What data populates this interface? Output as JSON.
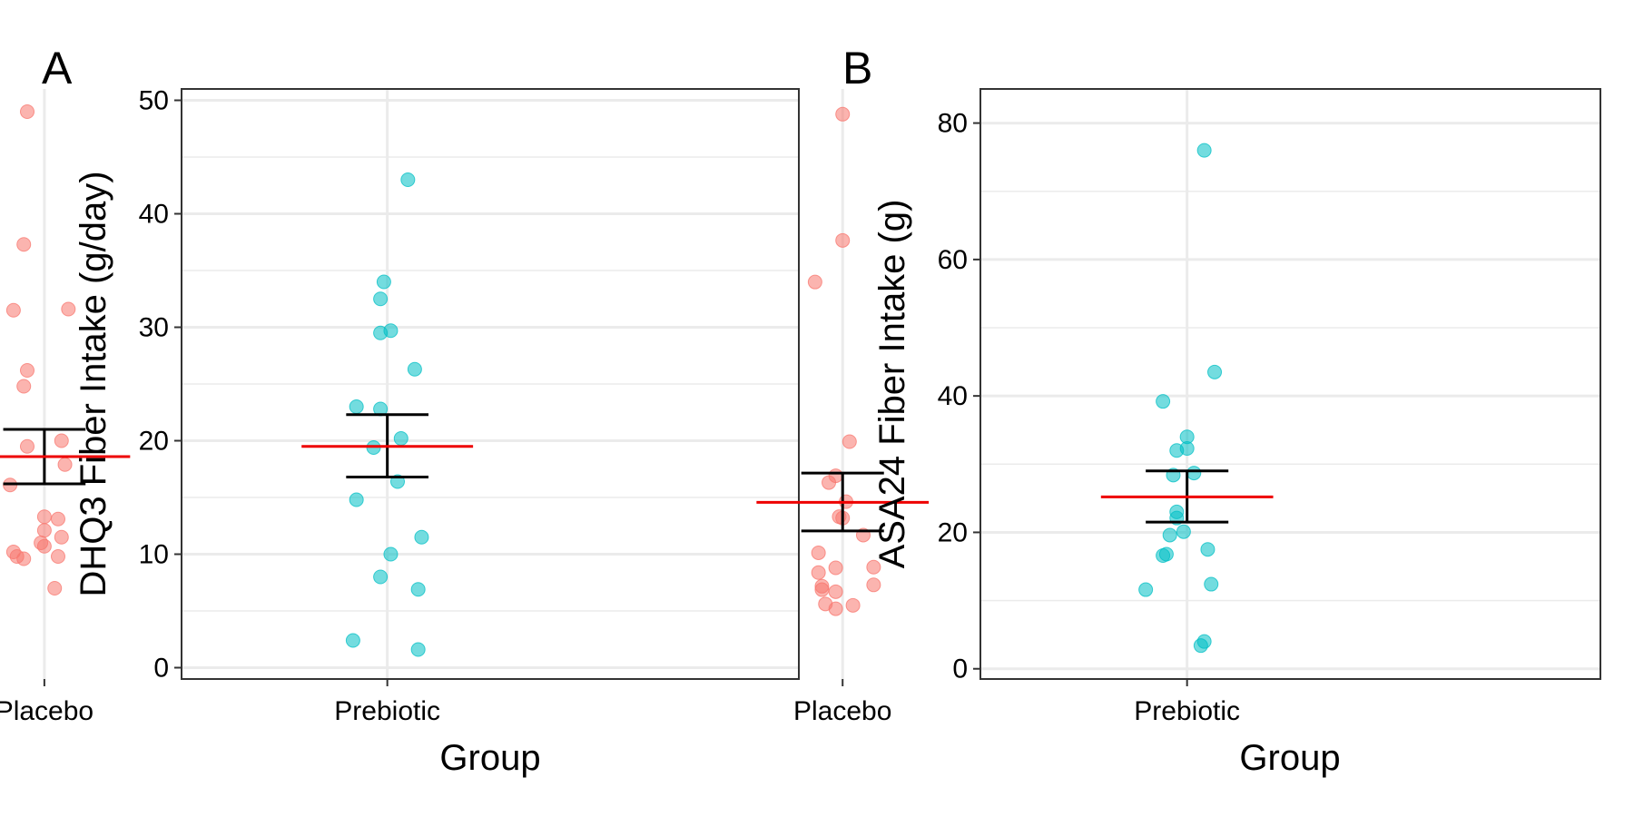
{
  "figure": {
    "panels": [
      "A",
      "B"
    ]
  },
  "colors": {
    "placebo": "#F8766D",
    "prebiotic": "#00BFC4",
    "mean_line": "#EE0000",
    "error_bar": "#000000",
    "panel_border": "#333333",
    "grid": "#EBEBEB"
  },
  "chart_data": [
    {
      "type": "scatter",
      "panel_label": "A",
      "xlabel": "Group",
      "ylabel": "DHQ3 Fiber Intake (g/day)",
      "categories": [
        "Placebo",
        "Prebiotic"
      ],
      "ylim": [
        -1,
        51
      ],
      "yticks": [
        0,
        10,
        20,
        30,
        40,
        50
      ],
      "grid": true,
      "legend": "none",
      "series": [
        {
          "group": "Placebo",
          "color": "#F8766D",
          "points": [
            [
              -0.05,
              49
            ],
            [
              -0.06,
              37.3
            ],
            [
              -0.09,
              31.5
            ],
            [
              0.07,
              31.6
            ],
            [
              -0.05,
              26.2
            ],
            [
              -0.06,
              24.8
            ],
            [
              -0.05,
              19.5
            ],
            [
              0.05,
              20
            ],
            [
              0.06,
              17.9
            ],
            [
              -0.1,
              16.1
            ],
            [
              0.0,
              13.3
            ],
            [
              0.04,
              13.1
            ],
            [
              0.0,
              12.1
            ],
            [
              0.05,
              11.5
            ],
            [
              -0.01,
              11
            ],
            [
              0.0,
              10.7
            ],
            [
              -0.09,
              10.2
            ],
            [
              -0.08,
              9.8
            ],
            [
              -0.06,
              9.6
            ],
            [
              0.04,
              9.8
            ],
            [
              0.03,
              7
            ]
          ],
          "mean": 18.6,
          "lower": 16.2,
          "upper": 21
        },
        {
          "group": "Prebiotic",
          "color": "#00BFC4",
          "points": [
            [
              0.06,
              43
            ],
            [
              -0.01,
              34
            ],
            [
              -0.02,
              32.5
            ],
            [
              -0.02,
              29.5
            ],
            [
              0.01,
              29.7
            ],
            [
              0.08,
              26.3
            ],
            [
              -0.09,
              23
            ],
            [
              -0.02,
              22.8
            ],
            [
              0.04,
              20.2
            ],
            [
              -0.04,
              19.4
            ],
            [
              0.03,
              16.4
            ],
            [
              -0.09,
              14.8
            ],
            [
              0.1,
              11.5
            ],
            [
              0.01,
              10
            ],
            [
              -0.02,
              8
            ],
            [
              0.09,
              6.9
            ],
            [
              -0.1,
              2.4
            ],
            [
              0.09,
              1.6
            ]
          ],
          "mean": 19.5,
          "lower": 16.8,
          "upper": 22.3
        }
      ]
    },
    {
      "type": "scatter",
      "panel_label": "B",
      "xlabel": "Group",
      "ylabel": "ASA24 Fiber Intake (g)",
      "categories": [
        "Placebo",
        "Prebiotic"
      ],
      "ylim": [
        -1.5,
        85
      ],
      "yticks": [
        0,
        20,
        40,
        60,
        80
      ],
      "grid": true,
      "legend": "none",
      "series": [
        {
          "group": "Placebo",
          "color": "#F8766D",
          "points": [
            [
              0.0,
              81.3
            ],
            [
              0.0,
              62.8
            ],
            [
              -0.08,
              56.7
            ],
            [
              0.02,
              33.3
            ],
            [
              -0.02,
              28.3
            ],
            [
              -0.04,
              27.3
            ],
            [
              0.01,
              24.5
            ],
            [
              -0.01,
              22.3
            ],
            [
              0.0,
              22.1
            ],
            [
              0.06,
              19.6
            ],
            [
              -0.07,
              17
            ],
            [
              -0.02,
              14.8
            ],
            [
              -0.07,
              14.1
            ],
            [
              0.09,
              14.9
            ],
            [
              -0.06,
              12.1
            ],
            [
              -0.06,
              11.6
            ],
            [
              0.09,
              12.3
            ],
            [
              -0.02,
              11.3
            ],
            [
              -0.05,
              9.5
            ],
            [
              0.03,
              9.3
            ],
            [
              -0.02,
              8.8
            ]
          ],
          "mean": 24.4,
          "lower": 20.2,
          "upper": 28.7
        },
        {
          "group": "Prebiotic",
          "color": "#00BFC4",
          "points": [
            [
              0.05,
              76
            ],
            [
              0.08,
              43.5
            ],
            [
              -0.07,
              39.2
            ],
            [
              0.0,
              34
            ],
            [
              0.0,
              32.3
            ],
            [
              -0.03,
              32
            ],
            [
              -0.04,
              28.4
            ],
            [
              0.02,
              28.7
            ],
            [
              -0.03,
              23
            ],
            [
              -0.03,
              22.1
            ],
            [
              -0.01,
              20.1
            ],
            [
              -0.05,
              19.6
            ],
            [
              0.06,
              17.5
            ],
            [
              -0.06,
              16.8
            ],
            [
              -0.07,
              16.6
            ],
            [
              0.07,
              12.4
            ],
            [
              -0.12,
              11.6
            ],
            [
              0.05,
              4
            ],
            [
              0.04,
              3.4
            ]
          ],
          "mean": 25.2,
          "lower": 21.5,
          "upper": 29
        }
      ]
    }
  ]
}
